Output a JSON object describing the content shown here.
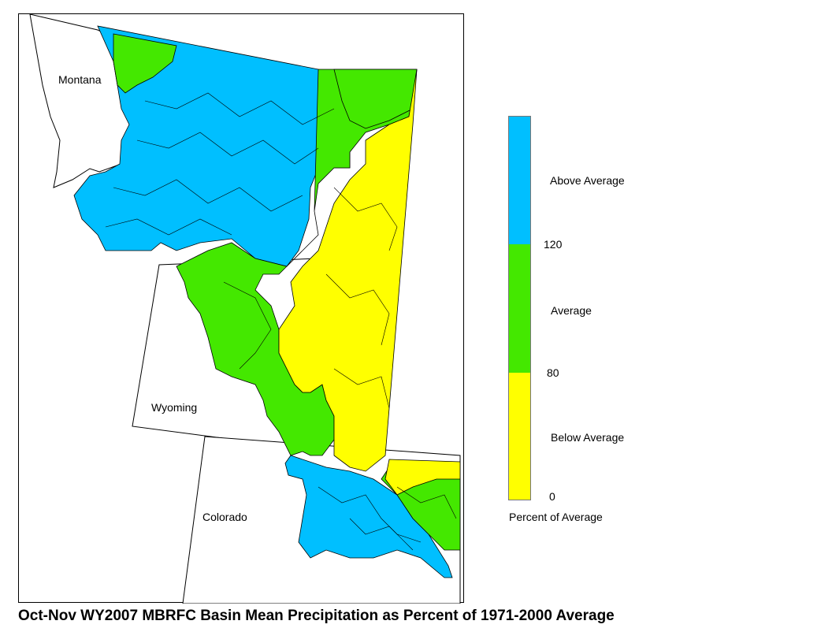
{
  "map": {
    "states": [
      "Montana",
      "Wyoming",
      "Colorado"
    ]
  },
  "legend": {
    "title": "Percent of Average",
    "categories": [
      {
        "label": "Above Average",
        "min": 120,
        "color": "#00bfff"
      },
      {
        "label": "Average",
        "min": 80,
        "max": 120,
        "color": "#44e800"
      },
      {
        "label": "Below Average",
        "min": 0,
        "max": 80,
        "color": "#ffff00"
      }
    ],
    "ticks": [
      "120",
      "80",
      "0"
    ]
  },
  "caption": "Oct-Nov WY2007 MBRFC Basin Mean Precipitation as Percent of 1971-2000 Average"
}
